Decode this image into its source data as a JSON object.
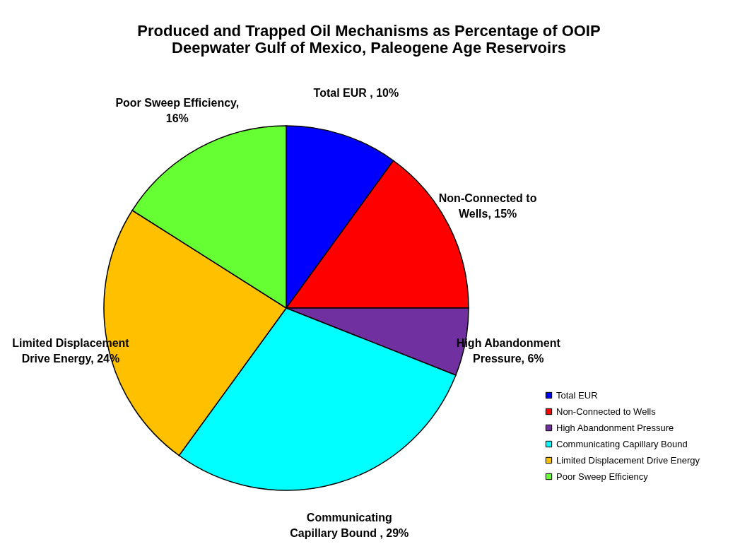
{
  "chart_data": {
    "type": "pie",
    "title": [
      "Produced and Trapped Oil Mechanisms as Percentage of OOIP",
      "Deepwater Gulf of Mexico, Paleogene Age Reservoirs"
    ],
    "categories": [
      "Total EUR",
      "Non-Connected to Wells",
      "High Abandonment Pressure",
      "Communicating Capillary Bound",
      "Limited Displacement Drive Energy",
      "Poor Sweep Efficiency"
    ],
    "values": [
      10,
      15,
      6,
      29,
      24,
      16
    ],
    "colors": [
      "#0000ff",
      "#ff0000",
      "#7030a0",
      "#00ffff",
      "#ffc000",
      "#66ff33"
    ],
    "value_labels": [
      "Total EUR , 10%",
      "Non-Connected to Wells, 15%",
      "High Abandonment Pressure, 6%",
      "Communicating Capillary Bound , 29%",
      "Limited Displacement Drive Energy, 24%",
      "Poor Sweep Efficiency, 16%"
    ],
    "legend": "bottom right"
  }
}
